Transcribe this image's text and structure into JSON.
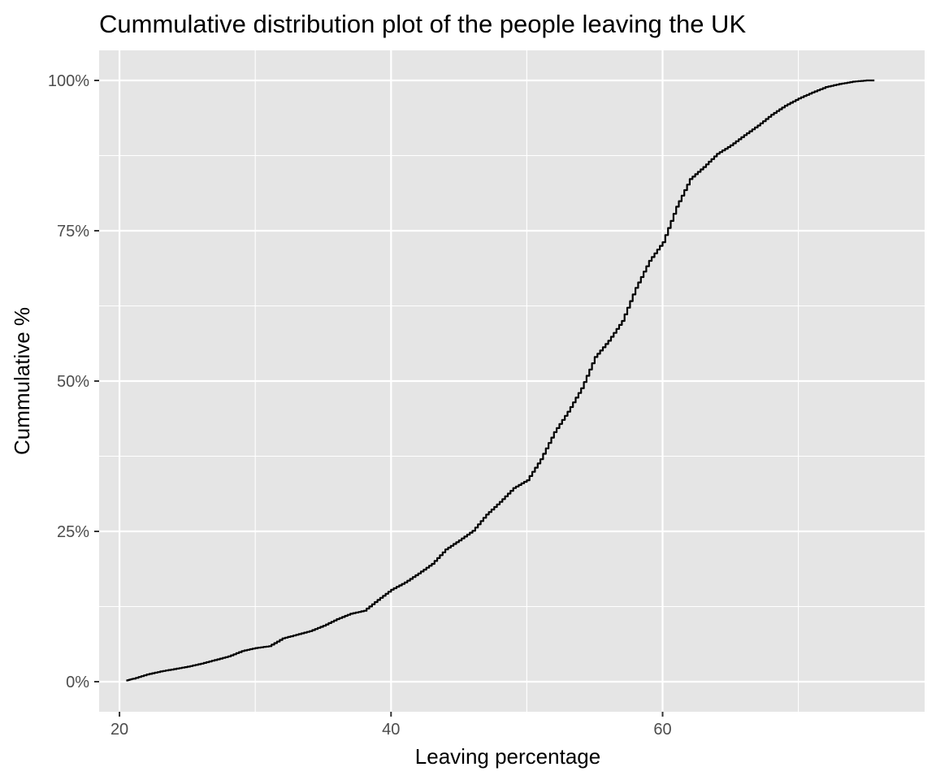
{
  "chart_data": {
    "type": "line",
    "subtype": "ecdf",
    "title": "Cummulative distribution plot of the people leaving the UK",
    "xlabel": "Leaving percentage",
    "ylabel": "Cummulative %",
    "xlim": [
      18.5,
      79.3
    ],
    "ylim": [
      -0.05,
      1.05
    ],
    "x_ticks": [
      20,
      40,
      60
    ],
    "x_tick_labels": [
      "20",
      "40",
      "60"
    ],
    "x_minor_ticks": [
      30,
      50,
      70
    ],
    "y_ticks": [
      0,
      0.25,
      0.5,
      0.75,
      1.0
    ],
    "y_tick_labels": [
      "0%",
      "25%",
      "50%",
      "75%",
      "100%"
    ],
    "y_minor_ticks": [
      0.125,
      0.375,
      0.625,
      0.875
    ],
    "grid": true,
    "legend": "none",
    "colors": {
      "panel": "#e5e5e5",
      "grid": "#ffffff",
      "line": "#000000"
    },
    "series": [
      {
        "x": [
          20.5,
          21.0,
          22.0,
          23.0,
          24.0,
          25.0,
          26.0,
          27.0,
          28.0,
          29.0,
          30.0,
          31.0,
          32.0,
          33.0,
          34.0,
          35.0,
          36.0,
          37.0,
          38.0,
          39.0,
          40.0,
          41.0,
          42.0,
          43.0,
          44.0,
          45.0,
          46.0,
          47.0,
          48.0,
          49.0,
          50.0,
          51.0,
          52.0,
          53.0,
          54.0,
          55.0,
          56.0,
          57.0,
          58.0,
          59.0,
          60.0,
          61.0,
          62.0,
          63.0,
          64.0,
          65.0,
          66.0,
          67.0,
          68.0,
          69.0,
          70.0,
          71.0,
          72.0,
          73.0,
          74.0,
          75.0,
          75.6
        ],
        "y": [
          0.002,
          0.005,
          0.012,
          0.017,
          0.021,
          0.025,
          0.03,
          0.036,
          0.042,
          0.051,
          0.056,
          0.059,
          0.072,
          0.078,
          0.084,
          0.093,
          0.104,
          0.113,
          0.118,
          0.136,
          0.153,
          0.165,
          0.18,
          0.196,
          0.22,
          0.235,
          0.251,
          0.278,
          0.299,
          0.322,
          0.335,
          0.37,
          0.415,
          0.449,
          0.488,
          0.54,
          0.567,
          0.6,
          0.655,
          0.7,
          0.731,
          0.79,
          0.836,
          0.856,
          0.878,
          0.892,
          0.909,
          0.925,
          0.943,
          0.958,
          0.97,
          0.98,
          0.989,
          0.994,
          0.998,
          1.0,
          1.0
        ]
      }
    ]
  }
}
